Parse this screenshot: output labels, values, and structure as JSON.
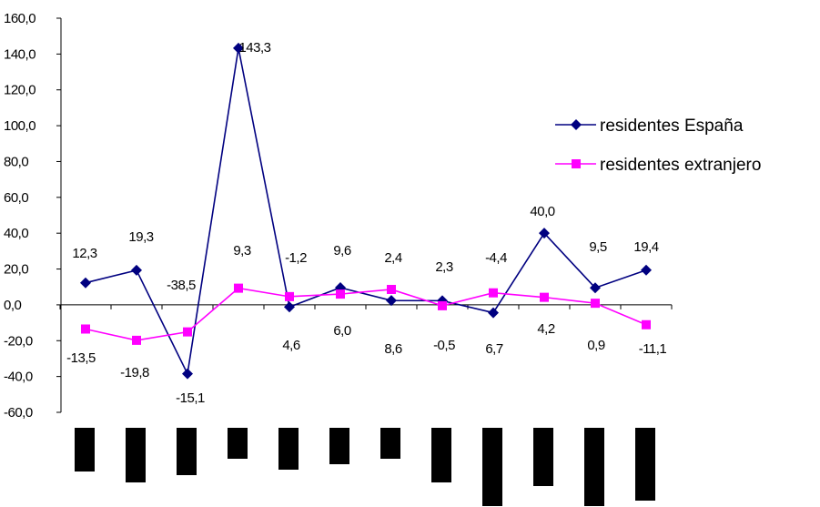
{
  "chart_data": {
    "type": "line",
    "title": "",
    "xlabel": "",
    "ylabel": "",
    "ylim": [
      -60,
      160
    ],
    "yticks": [
      -60,
      -40,
      -20,
      0,
      20,
      40,
      60,
      80,
      100,
      120,
      140,
      160
    ],
    "ytick_labels": [
      "-60,0",
      "-40,0",
      "-20,0",
      "0,0",
      "20,0",
      "40,0",
      "60,0",
      "80,0",
      "100,0",
      "120,0",
      "140,0",
      "160,0"
    ],
    "grid": false,
    "legend_position": "right",
    "categories_count": 12,
    "series": [
      {
        "name": "residentes España",
        "color": "#000080",
        "marker": "diamond",
        "values": [
          12.3,
          19.3,
          -38.5,
          143.3,
          -1.2,
          9.6,
          2.4,
          2.3,
          -4.4,
          40.0,
          9.5,
          19.4
        ],
        "labels": [
          "12,3",
          "19,3",
          "-38,5",
          "143,3",
          "-1,2",
          "9,6",
          "2,4",
          "2,3",
          "-4,4",
          "40,0",
          "9,5",
          "19,4"
        ]
      },
      {
        "name": "residentes extranjero",
        "color": "#ff00ff",
        "marker": "square",
        "values": [
          -13.5,
          -19.8,
          -15.1,
          9.3,
          4.6,
          6.0,
          8.6,
          -0.5,
          6.7,
          4.2,
          0.9,
          -11.1
        ],
        "labels": [
          "-13,5",
          "-19,8",
          "-15,1",
          "9,3",
          "4,6",
          "6,0",
          "8,6",
          "-0,5",
          "6,7",
          "4,2",
          "0,9",
          "-11,1"
        ]
      }
    ]
  }
}
